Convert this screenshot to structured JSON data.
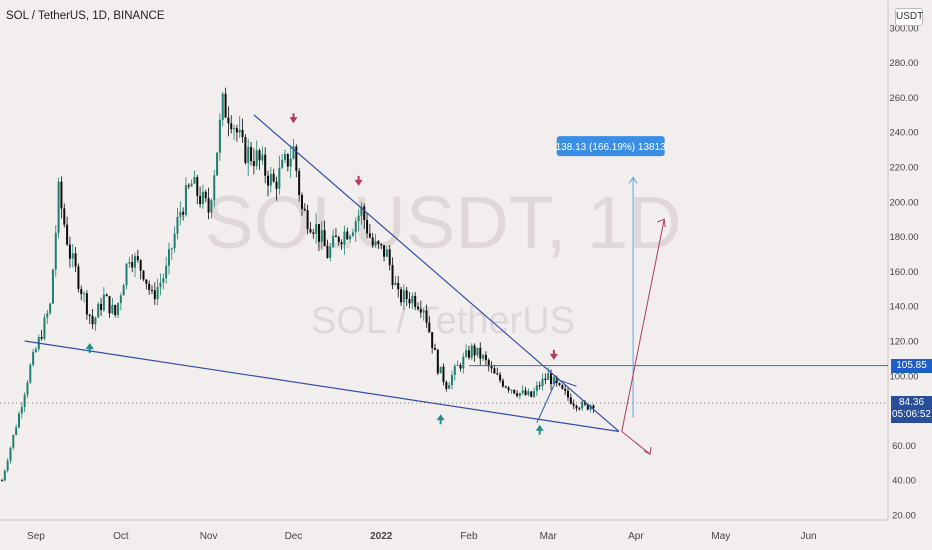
{
  "header": {
    "title": "SOL / TetherUS, 1D, BINANCE",
    "currency": "USDT"
  },
  "watermark": {
    "symbol": "SOLUSDT, 1D",
    "name": "SOL / TetherUS"
  },
  "chart_data": {
    "type": "candlestick",
    "title": "SOL / TetherUS, 1D, BINANCE",
    "ylim": [
      20,
      300
    ],
    "y_ticks": [
      "20.00",
      "40.00",
      "60.00",
      "80.00",
      "100.00",
      "120.00",
      "140.00",
      "160.00",
      "180.00",
      "200.00",
      "220.00",
      "240.00",
      "260.00",
      "280.00",
      "300.00"
    ],
    "x_ticks": [
      "Sep",
      "Oct",
      "Nov",
      "Dec",
      "2022",
      "Feb",
      "Mar",
      "Apr",
      "May",
      "Jun"
    ],
    "price_path": [
      [
        "2021-08-20",
        40
      ],
      [
        "2021-08-26",
        78
      ],
      [
        "2021-08-30",
        105
      ],
      [
        "2021-09-06",
        140
      ],
      [
        "2021-09-09",
        205
      ],
      [
        "2021-09-13",
        170
      ],
      [
        "2021-09-18",
        145
      ],
      [
        "2021-09-21",
        130
      ],
      [
        "2021-09-25",
        145
      ],
      [
        "2021-09-29",
        135
      ],
      [
        "2021-10-04",
        170
      ],
      [
        "2021-10-09",
        160
      ],
      [
        "2021-10-12",
        145
      ],
      [
        "2021-10-17",
        160
      ],
      [
        "2021-10-22",
        195
      ],
      [
        "2021-10-26",
        210
      ],
      [
        "2021-11-01",
        195
      ],
      [
        "2021-11-06",
        255
      ],
      [
        "2021-11-09",
        250
      ],
      [
        "2021-11-13",
        230
      ],
      [
        "2021-11-18",
        225
      ],
      [
        "2021-11-24",
        210
      ],
      [
        "2021-12-01",
        230
      ],
      [
        "2021-12-04",
        195
      ],
      [
        "2021-12-09",
        185
      ],
      [
        "2021-12-13",
        170
      ],
      [
        "2021-12-17",
        180
      ],
      [
        "2021-12-21",
        185
      ],
      [
        "2021-12-25",
        195
      ],
      [
        "2021-12-29",
        175
      ],
      [
        "2022-01-03",
        170
      ],
      [
        "2022-01-07",
        145
      ],
      [
        "2022-01-12",
        145
      ],
      [
        "2022-01-16",
        140
      ],
      [
        "2022-01-21",
        105
      ],
      [
        "2022-01-24",
        95
      ],
      [
        "2022-01-28",
        105
      ],
      [
        "2022-02-02",
        115
      ],
      [
        "2022-02-06",
        110
      ],
      [
        "2022-02-10",
        100
      ],
      [
        "2022-02-14",
        95
      ],
      [
        "2022-02-19",
        90
      ],
      [
        "2022-02-23",
        88
      ],
      [
        "2022-02-26",
        95
      ],
      [
        "2022-03-01",
        100
      ],
      [
        "2022-03-05",
        92
      ],
      [
        "2022-03-10",
        85
      ],
      [
        "2022-03-14",
        82
      ],
      [
        "2022-03-17",
        84.36
      ]
    ],
    "last_price": "84.36",
    "countdown": "05:06:52",
    "resistance_level": "105.85",
    "measure_label": "138.13 (166.19%) 13813",
    "markers_up": [
      [
        "2021-09-20",
        116
      ],
      [
        "2022-01-22",
        75
      ],
      [
        "2022-02-26",
        69
      ]
    ],
    "markers_down": [
      [
        "2021-12-01",
        248
      ],
      [
        "2021-12-24",
        212
      ],
      [
        "2022-03-03",
        112
      ]
    ],
    "trendlines": [
      {
        "from": [
          "2021-11-17",
          250
        ],
        "to": [
          "2022-03-26",
          68
        ]
      },
      {
        "from": [
          "2021-08-28",
          120
        ],
        "to": [
          "2022-03-26",
          68
        ]
      }
    ]
  }
}
